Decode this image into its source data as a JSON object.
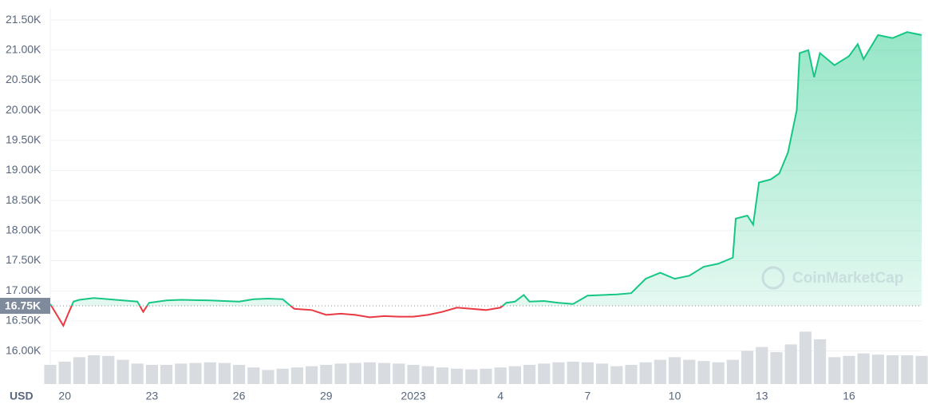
{
  "chart_data": {
    "type": "line",
    "currency": "USD",
    "watermark": "CoinMarketCap",
    "baseline": {
      "value": 16750,
      "label": "16.75K"
    },
    "up_color": "#16c784",
    "down_color": "#ea3943",
    "grid": true,
    "xlim": [
      -0.5,
      29.5
    ],
    "xticks": [
      {
        "value": 0,
        "label": "20"
      },
      {
        "value": 3,
        "label": "23"
      },
      {
        "value": 6,
        "label": "26"
      },
      {
        "value": 9,
        "label": "29"
      },
      {
        "value": 12,
        "label": "2023"
      },
      {
        "value": 15,
        "label": "4"
      },
      {
        "value": 18,
        "label": "7"
      },
      {
        "value": 21,
        "label": "10"
      },
      {
        "value": 24,
        "label": "13"
      },
      {
        "value": 27,
        "label": "16"
      }
    ],
    "ylim": [
      15450,
      21700
    ],
    "yticks": [
      {
        "value": 16000,
        "label": "16.00K"
      },
      {
        "value": 16500,
        "label": "16.50K"
      },
      {
        "value": 17000,
        "label": "17.00K"
      },
      {
        "value": 17500,
        "label": "17.50K"
      },
      {
        "value": 18000,
        "label": "18.00K"
      },
      {
        "value": 18500,
        "label": "18.50K"
      },
      {
        "value": 19000,
        "label": "19.00K"
      },
      {
        "value": 19500,
        "label": "19.50K"
      },
      {
        "value": 20000,
        "label": "20.00K"
      },
      {
        "value": 20500,
        "label": "20.50K"
      },
      {
        "value": 21000,
        "label": "21.00K"
      },
      {
        "value": 21500,
        "label": "21.50K"
      }
    ],
    "y2lim": [
      0,
      100
    ],
    "series": [
      {
        "x": [
          -0.5,
          -0.05,
          0.1,
          0.3,
          0.5,
          1,
          1.5,
          2,
          2.5,
          2.7,
          2.9,
          3.5,
          4,
          5,
          5.5,
          6,
          6.5,
          7,
          7.5,
          7.9,
          8.5,
          9,
          9.5,
          10,
          10.5,
          11,
          11.5,
          12,
          12.5,
          13,
          13.5,
          14,
          14.5,
          15,
          15.2,
          15.5,
          15.8,
          16,
          16.5,
          17,
          17.5,
          18,
          18.5,
          19,
          19.5,
          20,
          20.5,
          21,
          21.5,
          22,
          22.5,
          23,
          23.1,
          23.5,
          23.7,
          23.9,
          24.3,
          24.6,
          24.9,
          25.2,
          25.3,
          25.6,
          25.8,
          26,
          26.5,
          27,
          27.3,
          27.5,
          28,
          28.5,
          29,
          29.5
        ],
        "values": [
          16780,
          16420,
          16600,
          16820,
          16850,
          16880,
          16860,
          16840,
          16820,
          16650,
          16800,
          16840,
          16850,
          16840,
          16830,
          16820,
          16860,
          16870,
          16860,
          16700,
          16680,
          16600,
          16620,
          16600,
          16560,
          16580,
          16570,
          16570,
          16600,
          16650,
          16720,
          16700,
          16680,
          16720,
          16800,
          16820,
          16930,
          16820,
          16830,
          16800,
          16780,
          16920,
          16930,
          16940,
          16960,
          17200,
          17300,
          17200,
          17250,
          17400,
          17450,
          17550,
          18200,
          18250,
          18100,
          18800,
          18850,
          18950,
          19300,
          20000,
          20950,
          21000,
          20550,
          20950,
          20750,
          20900,
          21100,
          20850,
          21250,
          21200,
          21300,
          21250
        ]
      },
      {
        "axis": "y2",
        "color": "#d8dbe0",
        "x": [
          -0.5,
          0,
          0.5,
          1,
          1.5,
          2,
          2.5,
          3,
          3.5,
          4,
          4.5,
          5,
          5.5,
          6,
          6.5,
          7,
          7.5,
          8,
          8.5,
          9,
          9.5,
          10,
          10.5,
          11,
          11.5,
          12,
          12.5,
          13,
          13.5,
          14,
          14.5,
          15,
          15.5,
          16,
          16.5,
          17,
          17.5,
          18,
          18.5,
          19,
          19.5,
          20,
          20.5,
          21,
          21.5,
          22,
          22.5,
          23,
          23.5,
          24,
          24.5,
          25,
          25.5,
          26,
          26.5,
          27,
          27.5,
          28,
          28.5,
          29,
          29.5
        ],
        "values": [
          30,
          35,
          42,
          45,
          44,
          38,
          32,
          30,
          30,
          32,
          33,
          34,
          33,
          30,
          26,
          22,
          24,
          26,
          28,
          30,
          32,
          33,
          34,
          33,
          32,
          30,
          28,
          26,
          24,
          23,
          24,
          26,
          28,
          30,
          32,
          34,
          35,
          34,
          32,
          28,
          30,
          34,
          38,
          42,
          38,
          36,
          34,
          38,
          52,
          58,
          50,
          62,
          82,
          70,
          42,
          44,
          48,
          46,
          45,
          45,
          44
        ]
      }
    ]
  }
}
